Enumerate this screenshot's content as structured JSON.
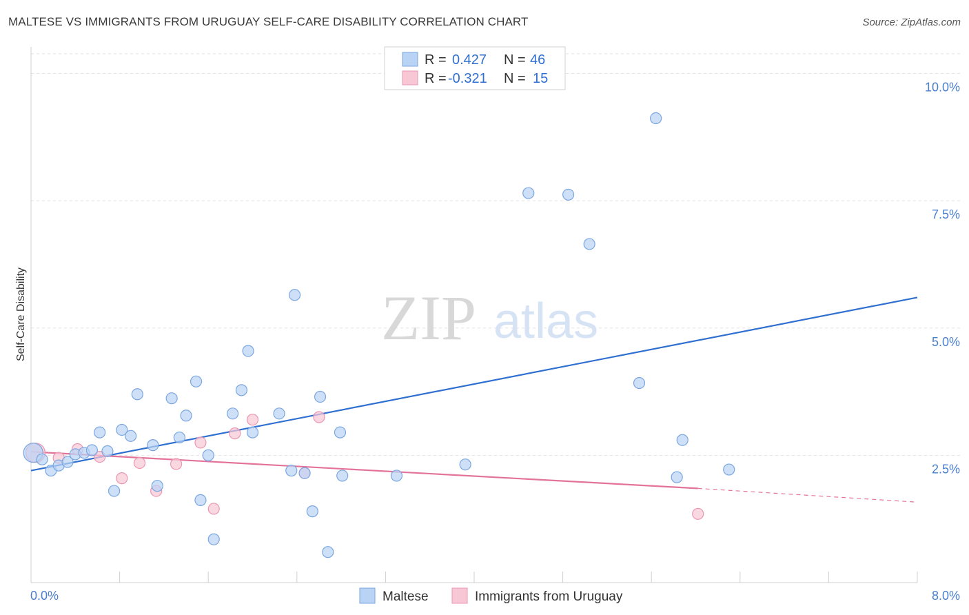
{
  "header": {
    "title": "MALTESE VS IMMIGRANTS FROM URUGUAY SELF-CARE DISABILITY CORRELATION CHART",
    "source": "Source: ZipAtlas.com"
  },
  "watermark": {
    "zip": "ZIP",
    "atlas": "atlas"
  },
  "legend_top": [
    {
      "r_label": "R =",
      "r_value": "0.427",
      "n_label": "N =",
      "n_value": "46"
    },
    {
      "r_label": "R =",
      "r_value": "-0.321",
      "n_label": "N =",
      "n_value": "15"
    }
  ],
  "colors": {
    "maltese_fill": "#b9d3f5",
    "maltese_stroke": "#7aa6e0",
    "maltese_line": "#2f6fd1",
    "uruguay_fill": "#f8c7d6",
    "uruguay_stroke": "#eb96b1",
    "uruguay_line": "#e3739b",
    "tick_text": "#4a7fd0",
    "value_text": "#2f6fd1"
  },
  "chart_data": {
    "type": "scatter",
    "title": "MALTESE VS IMMIGRANTS FROM URUGUAY SELF-CARE DISABILITY CORRELATION CHART",
    "xlabel": "",
    "ylabel": "Self-Care Disability",
    "xlim": [
      0,
      8.0
    ],
    "ylim": [
      0,
      10.4
    ],
    "x_tick_labels": [
      "0.0%",
      "8.0%"
    ],
    "y_ticks": [
      2.5,
      5.0,
      7.5,
      10.0
    ],
    "y_tick_labels": [
      "2.5%",
      "5.0%",
      "7.5%",
      "10.0%"
    ],
    "grid": "horizontal dashed",
    "legend_position": "bottom-center",
    "series": [
      {
        "name": "Maltese",
        "points": [
          [
            0.02,
            2.55
          ],
          [
            0.1,
            2.42
          ],
          [
            0.18,
            2.2
          ],
          [
            0.25,
            2.3
          ],
          [
            0.33,
            2.37
          ],
          [
            0.4,
            2.52
          ],
          [
            0.48,
            2.55
          ],
          [
            0.55,
            2.6
          ],
          [
            0.62,
            2.95
          ],
          [
            0.69,
            2.58
          ],
          [
            0.75,
            1.8
          ],
          [
            0.82,
            3.0
          ],
          [
            0.9,
            2.88
          ],
          [
            0.96,
            3.7
          ],
          [
            1.1,
            2.7
          ],
          [
            1.14,
            1.9
          ],
          [
            1.27,
            3.62
          ],
          [
            1.34,
            2.85
          ],
          [
            1.4,
            3.28
          ],
          [
            1.49,
            3.95
          ],
          [
            1.53,
            1.62
          ],
          [
            1.6,
            2.5
          ],
          [
            1.65,
            0.85
          ],
          [
            1.82,
            3.32
          ],
          [
            1.9,
            3.78
          ],
          [
            1.96,
            4.55
          ],
          [
            2.0,
            2.95
          ],
          [
            2.24,
            3.32
          ],
          [
            2.35,
            2.2
          ],
          [
            2.38,
            5.65
          ],
          [
            2.47,
            2.15
          ],
          [
            2.54,
            1.4
          ],
          [
            2.61,
            3.65
          ],
          [
            2.68,
            0.6
          ],
          [
            2.79,
            2.95
          ],
          [
            2.81,
            2.1
          ],
          [
            3.3,
            2.1
          ],
          [
            3.92,
            2.32
          ],
          [
            4.49,
            7.65
          ],
          [
            4.85,
            7.62
          ],
          [
            5.04,
            6.65
          ],
          [
            5.49,
            3.92
          ],
          [
            5.64,
            9.12
          ],
          [
            5.83,
            2.07
          ],
          [
            5.88,
            2.8
          ],
          [
            6.3,
            2.22
          ]
        ],
        "trend_line": {
          "x": [
            0.0,
            8.0
          ],
          "y": [
            2.2,
            5.6
          ]
        }
      },
      {
        "name": "Immigrants from Uruguay",
        "points": [
          [
            0.04,
            2.55
          ],
          [
            0.25,
            2.45
          ],
          [
            0.42,
            2.62
          ],
          [
            0.62,
            2.47
          ],
          [
            0.82,
            2.05
          ],
          [
            0.98,
            2.35
          ],
          [
            1.13,
            1.8
          ],
          [
            1.31,
            2.33
          ],
          [
            1.53,
            2.75
          ],
          [
            1.65,
            1.45
          ],
          [
            1.84,
            2.93
          ],
          [
            2.0,
            3.2
          ],
          [
            2.47,
            2.15
          ],
          [
            2.6,
            3.25
          ],
          [
            6.02,
            1.35
          ]
        ],
        "trend_line": {
          "x": [
            0.0,
            6.02
          ],
          "y": [
            2.57,
            1.85
          ]
        },
        "trend_line_dashed_extension": {
          "x": [
            6.02,
            8.0
          ],
          "y": [
            1.85,
            1.58
          ]
        }
      }
    ]
  }
}
